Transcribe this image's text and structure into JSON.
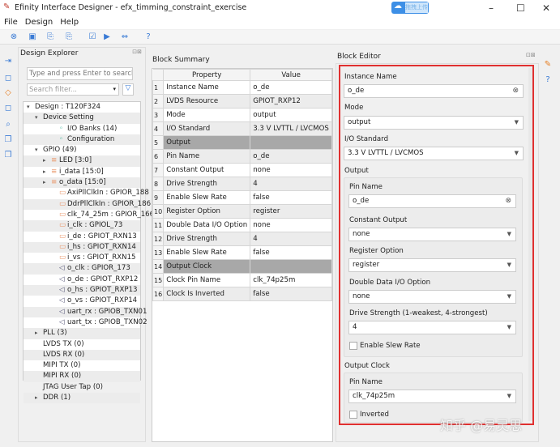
{
  "window": {
    "title": "Efinity Interface Designer - efx_timming_constraint_exercise",
    "upload_label": "拖拽上传"
  },
  "menu": [
    "File",
    "Design",
    "Help"
  ],
  "explorer": {
    "title": "Design Explorer",
    "search_placeholder": "Type and press Enter to search...",
    "filter_placeholder": "Search filter...",
    "tree": [
      {
        "label": "Design : T120F324",
        "level": 0,
        "arrow": "▾"
      },
      {
        "label": "Device Setting",
        "level": 1,
        "arrow": "▾"
      },
      {
        "label": "I/O Banks (14)",
        "level": 3,
        "icon": "◦"
      },
      {
        "label": "Configuration",
        "level": 3,
        "icon": "◦"
      },
      {
        "label": "GPIO (49)",
        "level": 1,
        "arrow": "▾"
      },
      {
        "label": "LED [3:0]",
        "level": 2,
        "arrow": "▸",
        "icon": "≡"
      },
      {
        "label": "i_data [15:0]",
        "level": 2,
        "arrow": "▸",
        "icon": "≡"
      },
      {
        "label": "o_data [15:0]",
        "level": 2,
        "arrow": "▸",
        "icon": "≡"
      },
      {
        "label": "AxiPllClkIn : GPIOR_188",
        "level": 3,
        "icon": "▭"
      },
      {
        "label": "DdrPllClkIn : GPIOR_186",
        "level": 3,
        "icon": "▭"
      },
      {
        "label": "clk_74_25m : GPIOR_166",
        "level": 3,
        "icon": "▭"
      },
      {
        "label": "i_clk : GPIOL_73",
        "level": 3,
        "icon": "▭"
      },
      {
        "label": "i_de : GPIOT_RXN13",
        "level": 3,
        "icon": "▭"
      },
      {
        "label": "i_hs : GPIOT_RXN14",
        "level": 3,
        "icon": "▭"
      },
      {
        "label": "i_vs : GPIOT_RXN15",
        "level": 3,
        "icon": "▭"
      },
      {
        "label": "o_clk : GPIOR_173",
        "level": 3,
        "icon": "◁"
      },
      {
        "label": "o_de : GPIOT_RXP12",
        "level": 3,
        "icon": "◁"
      },
      {
        "label": "o_hs : GPIOT_RXP13",
        "level": 3,
        "icon": "◁"
      },
      {
        "label": "o_vs : GPIOT_RXP14",
        "level": 3,
        "icon": "◁"
      },
      {
        "label": "uart_rx : GPIOB_TXN01",
        "level": 3,
        "icon": "◁"
      },
      {
        "label": "uart_tx : GPIOB_TXN02",
        "level": 3,
        "icon": "◁"
      },
      {
        "label": "PLL (3)",
        "level": 1,
        "arrow": "▸"
      },
      {
        "label": "LVDS TX (0)",
        "level": 1
      },
      {
        "label": "LVDS RX (0)",
        "level": 1
      },
      {
        "label": "MIPI TX (0)",
        "level": 1
      },
      {
        "label": "MIPI RX (0)",
        "level": 1
      },
      {
        "label": "JTAG User Tap (0)",
        "level": 1
      },
      {
        "label": "DDR (1)",
        "level": 1,
        "arrow": "▸"
      }
    ]
  },
  "summary": {
    "title": "Block Summary",
    "headers": [
      "Property",
      "Value"
    ],
    "rows": [
      [
        "1",
        "Instance Name",
        "o_de"
      ],
      [
        "2",
        "LVDS Resource",
        "GPIOT_RXP12"
      ],
      [
        "3",
        "Mode",
        "output"
      ],
      [
        "4",
        "I/O Standard",
        "3.3 V LVTTL / LVCMOS"
      ],
      [
        "5",
        "Output",
        ""
      ],
      [
        "6",
        "Pin Name",
        "o_de"
      ],
      [
        "7",
        "Constant Output",
        "none"
      ],
      [
        "8",
        "Drive Strength",
        "4"
      ],
      [
        "9",
        "Enable Slew Rate",
        "false"
      ],
      [
        "10",
        "Register Option",
        "register"
      ],
      [
        "11",
        "Double Data I/O Option",
        "none"
      ],
      [
        "12",
        "Drive Strength",
        "4"
      ],
      [
        "13",
        "Enable Slew Rate",
        "false"
      ],
      [
        "14",
        "Output Clock",
        ""
      ],
      [
        "15",
        "Clock Pin Name",
        "clk_74p25m"
      ],
      [
        "16",
        "Clock Is Inverted",
        "false"
      ]
    ]
  },
  "editor": {
    "title": "Block Editor",
    "instance_name_label": "Instance Name",
    "instance_name": "o_de",
    "mode_label": "Mode",
    "mode": "output",
    "io_standard_label": "I/O Standard",
    "io_standard": "3.3 V LVTTL / LVCMOS",
    "output_label": "Output",
    "pin_name_label": "Pin Name",
    "pin_name": "o_de",
    "constant_output_label": "Constant Output",
    "constant_output": "none",
    "register_option_label": "Register Option",
    "register_option": "register",
    "ddio_label": "Double Data I/O Option",
    "ddio": "none",
    "drive_strength_label": "Drive Strength (1-weakest, 4-strongest)",
    "drive_strength": "4",
    "slew_label": "Enable Slew Rate",
    "slew_checked": false,
    "output_clock_label": "Output Clock",
    "clock_pin_label": "Pin Name",
    "clock_pin": "clk_74p25m",
    "inverted_label": "Inverted",
    "inverted_checked": false,
    "highlight_color": "#e03030"
  },
  "watermark": "知乎 @易灵思"
}
